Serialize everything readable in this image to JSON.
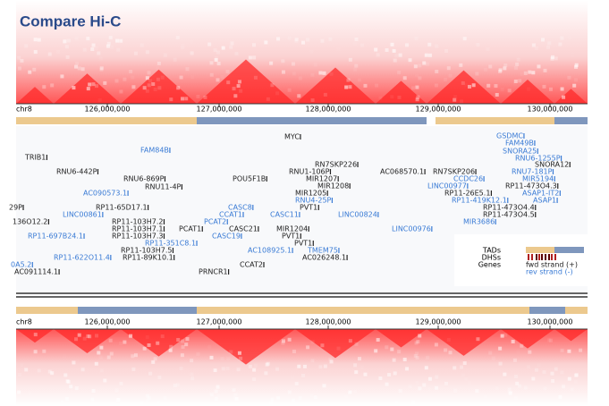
{
  "header": {
    "title": "Compare Hi-C"
  },
  "top_axis": {
    "chrom": "chr8",
    "ticks": [
      "126,000,000",
      "127,000,000",
      "128,000,000",
      "129,000,000",
      "130,000,000"
    ]
  },
  "bottom_axis": {
    "chrom": "chr8",
    "ticks": [
      "126,000,000",
      "127,000,000",
      "128,000,000",
      "129,000,000",
      "130,000,000"
    ]
  },
  "genes": [
    {
      "label": "MYC",
      "color": "#222222"
    },
    {
      "label": "FAM84B",
      "color": "#3a7bd5"
    },
    {
      "label": "TRIB1",
      "color": "#222222"
    },
    {
      "label": "RN7SKP226",
      "color": "#222222"
    },
    {
      "label": "RNU6-442P",
      "color": "#222222"
    },
    {
      "label": "RNU1-106P",
      "color": "#222222"
    },
    {
      "label": "AC068570.1",
      "color": "#222222"
    },
    {
      "label": "RN7SKP206",
      "color": "#222222"
    },
    {
      "label": "RNU6-869P",
      "color": "#222222"
    },
    {
      "label": "MIR1207",
      "color": "#222222"
    },
    {
      "label": "POU5F1B",
      "color": "#222222"
    },
    {
      "label": "RNU11-4P",
      "color": "#222222"
    },
    {
      "label": "MIR1208",
      "color": "#222222"
    },
    {
      "label": "AC090573.1",
      "color": "#3a7bd5"
    },
    {
      "label": "MIR1205",
      "color": "#222222"
    },
    {
      "label": "RNU4-25P",
      "color": "#3a7bd5"
    },
    {
      "label": "CASC8",
      "color": "#3a7bd5"
    },
    {
      "label": "PVT1",
      "color": "#222222"
    },
    {
      "label": "29P",
      "color": "#222222"
    },
    {
      "label": "LINC00861",
      "color": "#3a7bd5"
    },
    {
      "label": "RP11-65D17.1",
      "color": "#222222"
    },
    {
      "label": "CCAT1",
      "color": "#3a7bd5"
    },
    {
      "label": "CASC11",
      "color": "#3a7bd5"
    },
    {
      "label": "LINC00824",
      "color": "#3a7bd5"
    },
    {
      "label": "136O12.2",
      "color": "#222222"
    },
    {
      "label": "RP11-103H7.2",
      "color": "#222222"
    },
    {
      "label": "PCAT2",
      "color": "#3a7bd5"
    },
    {
      "label": "PCAT1",
      "color": "#222222"
    },
    {
      "label": "CASC21",
      "color": "#222222"
    },
    {
      "label": "MIR1204",
      "color": "#222222"
    },
    {
      "label": "LINC00976",
      "color": "#3a7bd5"
    },
    {
      "label": "RP11-103H7.1",
      "color": "#222222"
    },
    {
      "label": "RP11-697B24.1",
      "color": "#3a7bd5"
    },
    {
      "label": "RP11-103H7.3",
      "color": "#222222"
    },
    {
      "label": "CASC19",
      "color": "#3a7bd5"
    },
    {
      "label": "PVT1",
      "color": "#222222"
    },
    {
      "label": "RP11-351C8.1",
      "color": "#3a7bd5"
    },
    {
      "label": "PVT1",
      "color": "#222222"
    },
    {
      "label": "AC108925.1",
      "color": "#3a7bd5"
    },
    {
      "label": "TMEM75",
      "color": "#3a7bd5"
    },
    {
      "label": "RP11-103H7.5",
      "color": "#222222"
    },
    {
      "label": "RP11-622O11.4",
      "color": "#3a7bd5"
    },
    {
      "label": "RP11-89K10.1",
      "color": "#222222"
    },
    {
      "label": "AC026248.1",
      "color": "#222222"
    },
    {
      "label": "CCAT2",
      "color": "#222222"
    },
    {
      "label": "0A5.2",
      "color": "#3a7bd5"
    },
    {
      "label": "PRNCR1",
      "color": "#222222"
    },
    {
      "label": "AC091114.1",
      "color": "#222222"
    },
    {
      "label": "GSDMC",
      "color": "#3a7bd5"
    },
    {
      "label": "FAM49B",
      "color": "#3a7bd5"
    },
    {
      "label": "SNORA25",
      "color": "#3a7bd5"
    },
    {
      "label": "RNU6-1255P",
      "color": "#3a7bd5"
    },
    {
      "label": "SNORA12",
      "color": "#222222"
    },
    {
      "label": "RNU7-181P",
      "color": "#3a7bd5"
    },
    {
      "label": "CCDC26",
      "color": "#3a7bd5"
    },
    {
      "label": "MIR5194",
      "color": "#3a7bd5"
    },
    {
      "label": "LINC00977",
      "color": "#3a7bd5"
    },
    {
      "label": "RP11-473O4.3",
      "color": "#222222"
    },
    {
      "label": "RP11-26E5.1",
      "color": "#222222"
    },
    {
      "label": "ASAP1-IT2",
      "color": "#3a7bd5"
    },
    {
      "label": "RP11-419K12.1",
      "color": "#3a7bd5"
    },
    {
      "label": "ASAP1",
      "color": "#3a7bd5"
    },
    {
      "label": "RP11-473O4.4",
      "color": "#222222"
    },
    {
      "label": "RP11-473O4.5",
      "color": "#222222"
    },
    {
      "label": "MIR3686",
      "color": "#3a7bd5"
    }
  ],
  "legend": {
    "tads": "TADs",
    "dhss": "DHSs",
    "genes": "Genes",
    "fwd": "fwd strand (+)",
    "rev": "rev strand (-)"
  }
}
